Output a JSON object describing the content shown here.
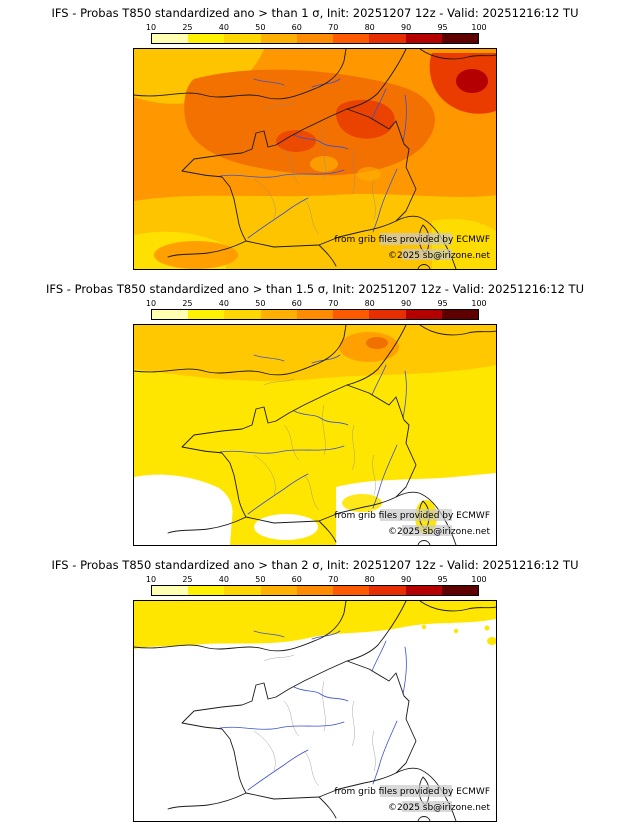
{
  "colorbar": {
    "ticks": [
      "10",
      "25",
      "40",
      "50",
      "60",
      "70",
      "80",
      "90",
      "95",
      "100"
    ],
    "colors": [
      "#ffffb2",
      "#fff200",
      "#ffd700",
      "#ffb000",
      "#ff8c00",
      "#ff5a00",
      "#e62e00",
      "#b40000",
      "#5f0000"
    ]
  },
  "panels": [
    {
      "title": "IFS - Probas T850  standardized ano > than 1 σ, Init: 20251207 12z - Valid: 20251216:12 TU"
    },
    {
      "title": "IFS - Probas T850  standardized ano > than 1.5 σ, Init: 20251207 12z - Valid: 20251216:12 TU"
    },
    {
      "title": "IFS - Probas T850  standardized ano > than 2 σ, Init: 20251207 12z - Valid: 20251216:12 TU"
    }
  ],
  "map": {
    "credit": "from grib files provided by ECMWF",
    "copyright": "©2025 sb@irizone.net"
  },
  "chart_data": [
    {
      "type": "heatmap",
      "title": "IFS - Probas T850 standardized ano > than 1 σ, Init: 20251207 12z - Valid: 20251216:12 TU",
      "variable": "Probability (%) that T850 standardized anomaly exceeds 1 σ",
      "model": "IFS",
      "init": "20251207 12z",
      "valid": "20251216:12 TU",
      "region": "France and Western Europe",
      "levels_percent": [
        10,
        25,
        40,
        50,
        60,
        70,
        80,
        90,
        95,
        100
      ],
      "legend_position": "top",
      "summary": "Probabilities around 70-90% over the Channel, southern England and northern France, with local maxima above 90% toward the far northeast corner; 40-60% over southern France, northern Spain and the Mediterranean edge"
    },
    {
      "type": "heatmap",
      "title": "IFS - Probas T850 standardized ano > than 1.5 σ, Init: 20251207 12z - Valid: 20251216:12 TU",
      "variable": "Probability (%) that T850 standardized anomaly exceeds 1.5 σ",
      "model": "IFS",
      "init": "20251207 12z",
      "valid": "20251216:12 TU",
      "region": "France and Western Europe",
      "levels_percent": [
        10,
        25,
        40,
        50,
        60,
        70,
        80,
        90,
        95,
        100
      ],
      "legend_position": "top",
      "summary": "Probabilities 25-50% over the Channel and northern France with a small 50-60% core near Belgium; 10-25% over central France; below 10% over southwest France, Spain and the Mediterranean"
    },
    {
      "type": "heatmap",
      "title": "IFS - Probas T850 standardized ano > than 2 σ, Init: 20251207 12z - Valid: 20251216:12 TU",
      "variable": "Probability (%) that T850 standardized anomaly exceeds 2 σ",
      "model": "IFS",
      "init": "20251207 12z",
      "valid": "20251216:12 TU",
      "region": "France and Western Europe",
      "levels_percent": [
        10,
        25,
        40,
        50,
        60,
        70,
        80,
        90,
        95,
        100
      ],
      "legend_position": "top",
      "summary": "Mostly below 10% everywhere; a 10-25% band across the top of the domain (southern England, Channel, Benelux) with a few small spots in the northeast"
    }
  ]
}
